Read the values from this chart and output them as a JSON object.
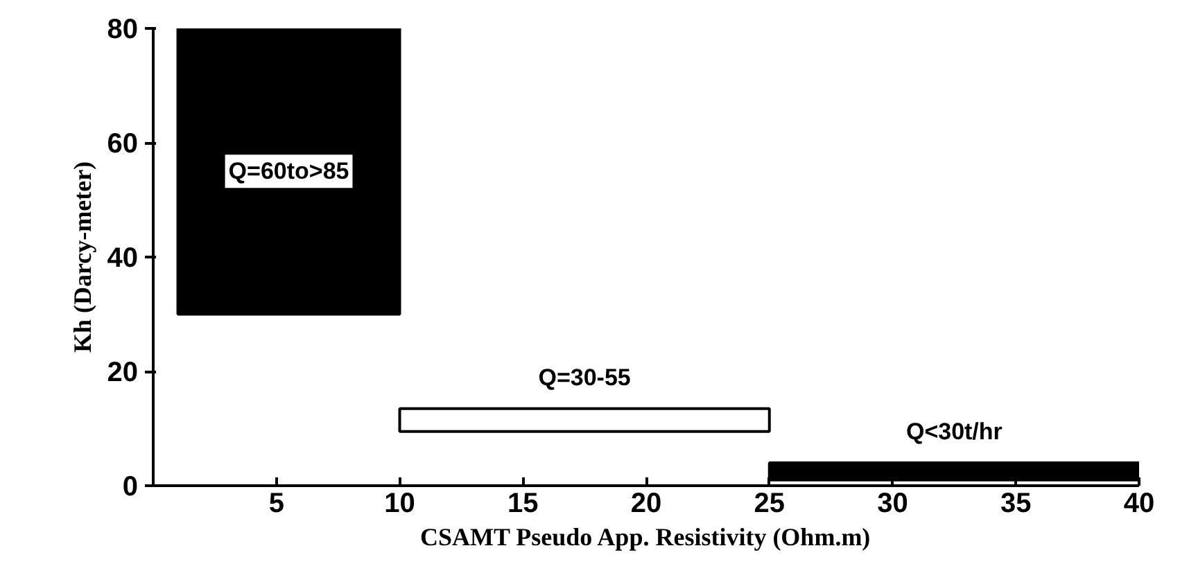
{
  "chart_data": {
    "type": "histogram",
    "xlabel": "CSAMT Pseudo App. Resistivity (Ohm.m)",
    "ylabel": "Kh (Darcy-meter)",
    "xlim": [
      0,
      40
    ],
    "xticks": [
      5,
      10,
      15,
      20,
      25,
      30,
      35,
      40
    ],
    "ylim": [
      0,
      80
    ],
    "yticks": [
      0,
      20,
      40,
      60,
      80
    ],
    "grid": false,
    "bins": [
      1,
      10,
      25,
      40
    ],
    "values": [
      50,
      4,
      3
    ],
    "base": [
      30,
      9.5,
      1
    ],
    "colors": [
      "#000000",
      "#ffffff",
      "#000000"
    ],
    "annotations": [
      "Q=60to>85",
      "Q=30-55",
      "Q<30t/hr"
    ]
  }
}
